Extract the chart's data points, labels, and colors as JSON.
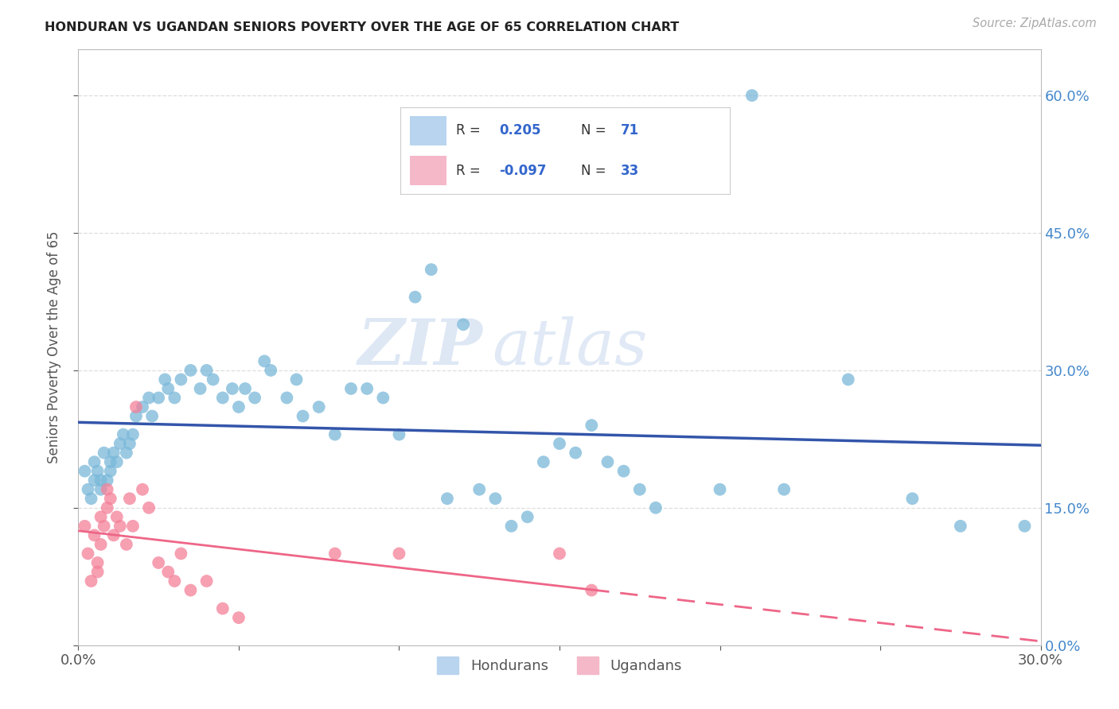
{
  "title": "HONDURAN VS UGANDAN SENIORS POVERTY OVER THE AGE OF 65 CORRELATION CHART",
  "source": "Source: ZipAtlas.com",
  "ylabel_label": "Seniors Poverty Over the Age of 65",
  "honduran_color": "#7ab8d9",
  "ugandan_color": "#f48099",
  "line_honduran": "#3355aa",
  "line_ugandan": "#ee6688",
  "legend_blue_fill": "#b8d4ee",
  "legend_pink_fill": "#f4b8c8",
  "xlim": [
    0.0,
    0.3
  ],
  "ylim": [
    0.0,
    0.65
  ],
  "x_tick_vals": [
    0.0,
    0.05,
    0.1,
    0.15,
    0.2,
    0.25,
    0.3
  ],
  "y_tick_vals": [
    0.0,
    0.15,
    0.3,
    0.45,
    0.6
  ],
  "x_tick_show": [
    0.0,
    0.3
  ],
  "honduran_x": [
    0.002,
    0.003,
    0.004,
    0.005,
    0.005,
    0.006,
    0.007,
    0.007,
    0.008,
    0.009,
    0.01,
    0.01,
    0.011,
    0.012,
    0.013,
    0.014,
    0.015,
    0.016,
    0.017,
    0.018,
    0.02,
    0.022,
    0.023,
    0.025,
    0.027,
    0.028,
    0.03,
    0.032,
    0.035,
    0.038,
    0.04,
    0.042,
    0.045,
    0.048,
    0.05,
    0.052,
    0.055,
    0.058,
    0.06,
    0.065,
    0.068,
    0.07,
    0.075,
    0.08,
    0.085,
    0.09,
    0.095,
    0.1,
    0.105,
    0.11,
    0.115,
    0.12,
    0.125,
    0.13,
    0.135,
    0.14,
    0.145,
    0.15,
    0.155,
    0.16,
    0.165,
    0.17,
    0.175,
    0.18,
    0.2,
    0.21,
    0.22,
    0.24,
    0.26,
    0.275,
    0.295
  ],
  "honduran_y": [
    0.19,
    0.17,
    0.16,
    0.18,
    0.2,
    0.19,
    0.18,
    0.17,
    0.21,
    0.18,
    0.19,
    0.2,
    0.21,
    0.2,
    0.22,
    0.23,
    0.21,
    0.22,
    0.23,
    0.25,
    0.26,
    0.27,
    0.25,
    0.27,
    0.29,
    0.28,
    0.27,
    0.29,
    0.3,
    0.28,
    0.3,
    0.29,
    0.27,
    0.28,
    0.26,
    0.28,
    0.27,
    0.31,
    0.3,
    0.27,
    0.29,
    0.25,
    0.26,
    0.23,
    0.28,
    0.28,
    0.27,
    0.23,
    0.38,
    0.41,
    0.16,
    0.35,
    0.17,
    0.16,
    0.13,
    0.14,
    0.2,
    0.22,
    0.21,
    0.24,
    0.2,
    0.19,
    0.17,
    0.15,
    0.17,
    0.6,
    0.17,
    0.29,
    0.16,
    0.13,
    0.13
  ],
  "ugandan_x": [
    0.002,
    0.003,
    0.004,
    0.005,
    0.006,
    0.006,
    0.007,
    0.007,
    0.008,
    0.009,
    0.009,
    0.01,
    0.011,
    0.012,
    0.013,
    0.015,
    0.016,
    0.017,
    0.018,
    0.02,
    0.022,
    0.025,
    0.028,
    0.03,
    0.032,
    0.035,
    0.04,
    0.045,
    0.05,
    0.08,
    0.1,
    0.15,
    0.16
  ],
  "ugandan_y": [
    0.13,
    0.1,
    0.07,
    0.12,
    0.09,
    0.08,
    0.11,
    0.14,
    0.13,
    0.15,
    0.17,
    0.16,
    0.12,
    0.14,
    0.13,
    0.11,
    0.16,
    0.13,
    0.26,
    0.17,
    0.15,
    0.09,
    0.08,
    0.07,
    0.1,
    0.06,
    0.07,
    0.04,
    0.03,
    0.1,
    0.1,
    0.1,
    0.06
  ],
  "watermark_zip": "ZIP",
  "watermark_atlas": "atlas",
  "background_color": "#ffffff",
  "grid_color": "#dddddd",
  "right_tick_color": "#4488cc",
  "text_color": "#555555"
}
